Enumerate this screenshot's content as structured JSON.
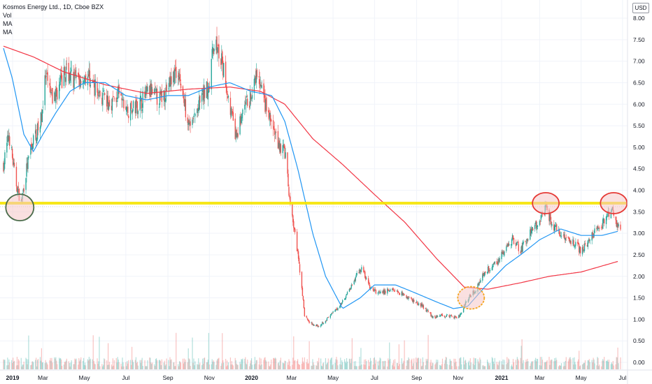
{
  "legend": {
    "title": "Kosmos Energy Ltd., 1D, Cboe BZX",
    "vol": "Vol",
    "ma1": "MA",
    "ma2": "MA"
  },
  "currency_label": "USD",
  "colors": {
    "up": "#26a69a",
    "down": "#ef5350",
    "ma_fast": "#2196f3",
    "ma_slow": "#f23645",
    "support_line": "#f5e400",
    "circle_green_stroke": "#4a6b4a",
    "circle_red_stroke": "#e53935",
    "circle_yellow_stroke": "#f5a623",
    "circle_fill": "#f5c6c6"
  },
  "chart_data": {
    "type": "candlestick",
    "title": "Kosmos Energy Ltd., 1D, Cboe BZX",
    "y_ticks": [
      "8.00",
      "7.50",
      "7.00",
      "6.50",
      "6.00",
      "5.50",
      "5.00",
      "4.50",
      "4.00",
      "3.50",
      "3.00",
      "2.50",
      "2.00",
      "1.50",
      "1.00",
      "0.50",
      "0.00"
    ],
    "x_ticks": [
      {
        "label": "2019",
        "bold": true
      },
      {
        "label": "Mar",
        "bold": false
      },
      {
        "label": "May",
        "bold": false
      },
      {
        "label": "Jul",
        "bold": false
      },
      {
        "label": "Sep",
        "bold": false
      },
      {
        "label": "Nov",
        "bold": false
      },
      {
        "label": "2020",
        "bold": true
      },
      {
        "label": "Mar",
        "bold": false
      },
      {
        "label": "May",
        "bold": false
      },
      {
        "label": "Jul",
        "bold": false
      },
      {
        "label": "Sep",
        "bold": false
      },
      {
        "label": "Nov",
        "bold": false
      },
      {
        "label": "2021",
        "bold": true
      },
      {
        "label": "Mar",
        "bold": false
      },
      {
        "label": "May",
        "bold": false
      },
      {
        "label": "Jul",
        "bold": false
      }
    ],
    "ylim": [
      0,
      8.2
    ],
    "support_level": 3.7,
    "price_anchors": [
      [
        "2019-01-02",
        4.6
      ],
      [
        "2019-01-10",
        5.3
      ],
      [
        "2019-01-20",
        4.2
      ],
      [
        "2019-01-28",
        3.7
      ],
      [
        "2019-02-05",
        4.5
      ],
      [
        "2019-02-15",
        5.2
      ],
      [
        "2019-02-25",
        5.5
      ],
      [
        "2019-03-05",
        6.6
      ],
      [
        "2019-03-15",
        6.1
      ],
      [
        "2019-03-25",
        6.4
      ],
      [
        "2019-04-05",
        6.8
      ],
      [
        "2019-04-20",
        6.5
      ],
      [
        "2019-05-05",
        6.7
      ],
      [
        "2019-05-20",
        6.3
      ],
      [
        "2019-06-05",
        6.0
      ],
      [
        "2019-06-20",
        6.2
      ],
      [
        "2019-07-05",
        5.8
      ],
      [
        "2019-07-20",
        6.0
      ],
      [
        "2019-08-05",
        6.3
      ],
      [
        "2019-08-20",
        6.1
      ],
      [
        "2019-09-05",
        6.5
      ],
      [
        "2019-09-15",
        6.9
      ],
      [
        "2019-09-25",
        6.0
      ],
      [
        "2019-10-05",
        5.5
      ],
      [
        "2019-10-20",
        6.1
      ],
      [
        "2019-11-01",
        6.5
      ],
      [
        "2019-11-08",
        7.5
      ],
      [
        "2019-11-20",
        6.9
      ],
      [
        "2019-12-01",
        6.0
      ],
      [
        "2019-12-10",
        5.2
      ],
      [
        "2019-12-20",
        5.8
      ],
      [
        "2020-01-05",
        6.3
      ],
      [
        "2020-01-10",
        6.7
      ],
      [
        "2020-01-20",
        6.1
      ],
      [
        "2020-02-01",
        5.5
      ],
      [
        "2020-02-10",
        5.1
      ],
      [
        "2020-02-20",
        4.9
      ],
      [
        "2020-02-28",
        3.6
      ],
      [
        "2020-03-05",
        3.1
      ],
      [
        "2020-03-15",
        1.9
      ],
      [
        "2020-03-20",
        1.1
      ],
      [
        "2020-03-28",
        0.9
      ],
      [
        "2020-04-10",
        0.85
      ],
      [
        "2020-04-25",
        1.05
      ],
      [
        "2020-05-10",
        1.3
      ],
      [
        "2020-05-25",
        1.7
      ],
      [
        "2020-06-05",
        2.05
      ],
      [
        "2020-06-12",
        2.2
      ],
      [
        "2020-06-25",
        1.7
      ],
      [
        "2020-07-10",
        1.6
      ],
      [
        "2020-07-25",
        1.7
      ],
      [
        "2020-08-10",
        1.6
      ],
      [
        "2020-08-25",
        1.45
      ],
      [
        "2020-09-10",
        1.3
      ],
      [
        "2020-09-25",
        1.05
      ],
      [
        "2020-10-10",
        1.1
      ],
      [
        "2020-10-25",
        1.05
      ],
      [
        "2020-11-05",
        1.1
      ],
      [
        "2020-11-15",
        1.5
      ],
      [
        "2020-11-25",
        1.65
      ],
      [
        "2020-12-10",
        2.1
      ],
      [
        "2020-12-25",
        2.3
      ],
      [
        "2021-01-10",
        2.6
      ],
      [
        "2021-01-20",
        2.9
      ],
      [
        "2021-02-01",
        2.6
      ],
      [
        "2021-02-15",
        3.0
      ],
      [
        "2021-03-01",
        3.3
      ],
      [
        "2021-03-10",
        3.6
      ],
      [
        "2021-03-20",
        3.2
      ],
      [
        "2021-04-01",
        3.0
      ],
      [
        "2021-04-15",
        2.85
      ],
      [
        "2021-05-01",
        2.6
      ],
      [
        "2021-05-15",
        2.9
      ],
      [
        "2021-06-01",
        3.2
      ],
      [
        "2021-06-15",
        3.55
      ],
      [
        "2021-06-25",
        3.15
      ]
    ],
    "ma_fast_anchors": [
      [
        "2019-01-02",
        7.3
      ],
      [
        "2019-01-15",
        6.6
      ],
      [
        "2019-02-01",
        5.3
      ],
      [
        "2019-02-15",
        4.9
      ],
      [
        "2019-03-01",
        5.3
      ],
      [
        "2019-03-20",
        5.8
      ],
      [
        "2019-04-10",
        6.3
      ],
      [
        "2019-05-01",
        6.5
      ],
      [
        "2019-06-01",
        6.5
      ],
      [
        "2019-07-01",
        6.2
      ],
      [
        "2019-08-01",
        6.1
      ],
      [
        "2019-09-01",
        6.2
      ],
      [
        "2019-10-01",
        6.2
      ],
      [
        "2019-11-01",
        6.4
      ],
      [
        "2019-12-01",
        6.5
      ],
      [
        "2020-01-01",
        6.3
      ],
      [
        "2020-02-01",
        6.2
      ],
      [
        "2020-02-20",
        5.6
      ],
      [
        "2020-03-10",
        4.5
      ],
      [
        "2020-04-01",
        3.0
      ],
      [
        "2020-04-20",
        2.0
      ],
      [
        "2020-05-15",
        1.25
      ],
      [
        "2020-06-10",
        1.5
      ],
      [
        "2020-07-01",
        1.8
      ],
      [
        "2020-08-01",
        1.8
      ],
      [
        "2020-09-01",
        1.6
      ],
      [
        "2020-10-01",
        1.4
      ],
      [
        "2020-10-25",
        1.25
      ],
      [
        "2020-11-15",
        1.3
      ],
      [
        "2020-12-10",
        1.75
      ],
      [
        "2021-01-10",
        2.25
      ],
      [
        "2021-02-01",
        2.5
      ],
      [
        "2021-03-01",
        2.85
      ],
      [
        "2021-04-01",
        3.1
      ],
      [
        "2021-05-01",
        2.95
      ],
      [
        "2021-06-01",
        2.95
      ],
      [
        "2021-06-25",
        3.05
      ]
    ],
    "ma_slow_anchors": [
      [
        "2019-01-02",
        7.35
      ],
      [
        "2019-02-15",
        7.1
      ],
      [
        "2019-04-01",
        6.75
      ],
      [
        "2019-06-01",
        6.45
      ],
      [
        "2019-08-01",
        6.25
      ],
      [
        "2019-10-01",
        6.35
      ],
      [
        "2019-12-01",
        6.4
      ],
      [
        "2020-01-15",
        6.3
      ],
      [
        "2020-02-20",
        6.0
      ],
      [
        "2020-04-01",
        5.2
      ],
      [
        "2020-05-15",
        4.6
      ],
      [
        "2020-07-01",
        3.9
      ],
      [
        "2020-08-15",
        3.25
      ],
      [
        "2020-10-01",
        2.4
      ],
      [
        "2020-11-10",
        1.75
      ],
      [
        "2020-12-15",
        1.7
      ],
      [
        "2021-02-01",
        1.85
      ],
      [
        "2021-03-15",
        2.0
      ],
      [
        "2021-05-01",
        2.1
      ],
      [
        "2021-06-25",
        2.35
      ]
    ],
    "annotations": [
      {
        "type": "circle",
        "date": "2019-01-26",
        "value": 3.6,
        "style": "green"
      },
      {
        "type": "circle",
        "date": "2020-11-20",
        "value": 1.5,
        "style": "yellow"
      },
      {
        "type": "circle",
        "date": "2021-03-10",
        "value": 3.7,
        "style": "red"
      },
      {
        "type": "circle",
        "date": "2021-06-18",
        "value": 3.7,
        "style": "red"
      }
    ]
  }
}
